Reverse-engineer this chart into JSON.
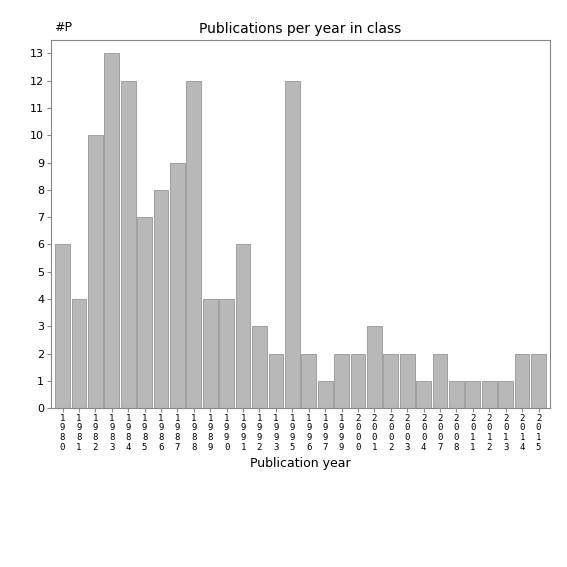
{
  "categories": [
    "1980",
    "1981",
    "1982",
    "1983",
    "1984",
    "1985",
    "1986",
    "1987",
    "1988",
    "1989",
    "1990",
    "1991",
    "1992",
    "1993",
    "1995",
    "1996",
    "1997",
    "1999",
    "2000",
    "2001",
    "2002",
    "2003",
    "2004",
    "2007",
    "2008",
    "2011",
    "2012",
    "2013",
    "2014",
    "2015"
  ],
  "values": [
    6,
    4,
    10,
    13,
    12,
    7,
    8,
    9,
    12,
    4,
    4,
    6,
    3,
    2,
    12,
    2,
    1,
    2,
    2,
    3,
    2,
    2,
    1,
    2,
    1,
    1,
    1,
    1,
    2,
    2
  ],
  "title": "Publications per year in class",
  "xlabel": "Publication year",
  "ylabel": "#P",
  "bar_color": "#b8b8b8",
  "bar_edgecolor": "#888888",
  "bg_color": "#ffffff",
  "yticks": [
    0,
    1,
    2,
    3,
    4,
    5,
    6,
    7,
    8,
    9,
    10,
    11,
    12,
    13
  ],
  "title_fontsize": 10,
  "xlabel_fontsize": 9,
  "ylabel_fontsize": 9,
  "tick_fontsize": 8
}
